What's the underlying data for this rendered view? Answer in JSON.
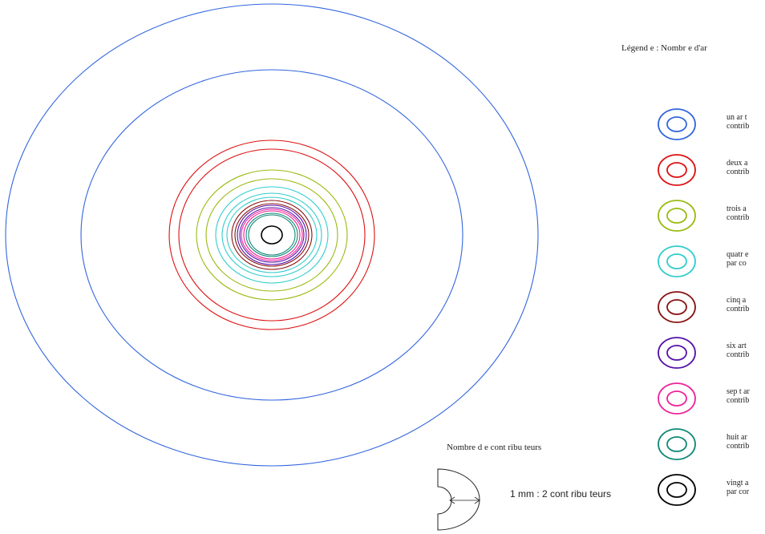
{
  "legend": {
    "title": "Légend e : Nombr e d'ar",
    "items": [
      {
        "line1": "un ar t",
        "line2": "contrib",
        "color": "#3366dd"
      },
      {
        "line1": "deux a",
        "line2": "contrib",
        "color": "#dd1111"
      },
      {
        "line1": "trois a",
        "line2": "contrib",
        "color": "#99bb11"
      },
      {
        "line1": "quatr e",
        "line2": "par co",
        "color": "#33cccc"
      },
      {
        "line1": "cinq a",
        "line2": "contrib",
        "color": "#881111"
      },
      {
        "line1": "six art",
        "line2": "contrib",
        "color": "#5511aa"
      },
      {
        "line1": "sep t ar",
        "line2": "contrib",
        "color": "#ee2299"
      },
      {
        "line1": "huit ar",
        "line2": "contrib",
        "color": "#118877"
      },
      {
        "line1": "vingt a",
        "line2": "par cor",
        "color": "#000000"
      }
    ]
  },
  "scale": {
    "title": "Nombre d e cont ribu teurs",
    "label": "1 mm : 2 cont ribu teurs"
  },
  "rings": [
    {
      "colorIndex": 0
    },
    {
      "colorIndex": 0
    },
    {
      "colorIndex": 1
    },
    {
      "colorIndex": 1
    },
    {
      "colorIndex": 2
    },
    {
      "colorIndex": 2
    },
    {
      "colorIndex": 3
    },
    {
      "colorIndex": 3
    },
    {
      "colorIndex": 3
    },
    {
      "colorIndex": 4
    },
    {
      "colorIndex": 4
    },
    {
      "colorIndex": 5
    },
    {
      "colorIndex": 5
    },
    {
      "colorIndex": 6
    },
    {
      "colorIndex": 6
    },
    {
      "colorIndex": 7
    },
    {
      "colorIndex": 7
    },
    {
      "colorIndex": 8
    }
  ]
}
